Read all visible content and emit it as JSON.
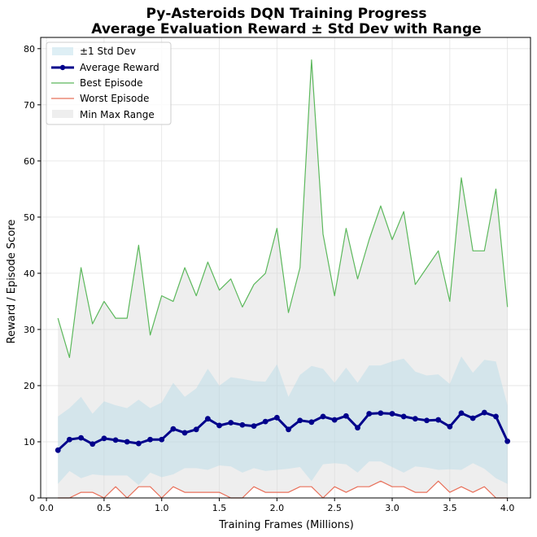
{
  "chart_data": {
    "type": "line",
    "title": "Py-Asteroids DQN Training Progress",
    "subtitle": "Average Evaluation Reward ± Std Dev with Range",
    "xlabel": "Training Frames (Millions)",
    "ylabel": "Reward / Episode Score",
    "xlim": [
      -0.05,
      4.2
    ],
    "ylim": [
      0,
      82
    ],
    "xticks": [
      0.0,
      0.5,
      1.0,
      1.5,
      2.0,
      2.5,
      3.0,
      3.5,
      4.0
    ],
    "xtick_labels": [
      "0.0",
      "0.5",
      "1.0",
      "1.5",
      "2.0",
      "2.5",
      "3.0",
      "3.5",
      "4.0"
    ],
    "yticks": [
      0,
      10,
      20,
      30,
      40,
      50,
      60,
      70,
      80
    ],
    "ytick_labels": [
      "0",
      "10",
      "20",
      "30",
      "40",
      "50",
      "60",
      "70",
      "80"
    ],
    "grid": true,
    "legend_position": "top-left",
    "x": [
      0.1,
      0.2,
      0.3,
      0.4,
      0.5,
      0.6,
      0.7,
      0.8,
      0.9,
      1.0,
      1.1,
      1.2,
      1.3,
      1.4,
      1.5,
      1.6,
      1.7,
      1.8,
      1.9,
      2.0,
      2.1,
      2.2,
      2.3,
      2.4,
      2.5,
      2.6,
      2.7,
      2.8,
      2.9,
      3.0,
      3.1,
      3.2,
      3.3,
      3.4,
      3.5,
      3.6,
      3.7,
      3.8,
      3.9,
      4.0
    ],
    "series": [
      {
        "name": "±1 Std Dev",
        "kind": "band",
        "color": "#add8e6",
        "upper": [
          14.5,
          16.0,
          18.0,
          15.0,
          17.2,
          16.5,
          16.0,
          17.5,
          16.0,
          17.0,
          20.5,
          18.0,
          19.5,
          23.0,
          20.0,
          21.5,
          21.2,
          20.8,
          20.7,
          23.8,
          18.0,
          21.9,
          23.5,
          23.0,
          20.5,
          23.2,
          20.5,
          23.6,
          23.6,
          24.3,
          24.8,
          22.5,
          21.8,
          22.0,
          20.3,
          25.2,
          22.3,
          24.6,
          24.3,
          16.5
        ],
        "lower": [
          2.5,
          4.8,
          3.5,
          4.2,
          4.0,
          4.0,
          4.0,
          2.3,
          4.5,
          3.7,
          4.2,
          5.3,
          5.3,
          5.0,
          5.8,
          5.6,
          4.5,
          5.3,
          4.8,
          5.0,
          5.2,
          5.5,
          3.0,
          6.0,
          6.2,
          6.0,
          4.5,
          6.5,
          6.5,
          5.5,
          4.5,
          5.6,
          5.4,
          5.0,
          5.1,
          5.0,
          6.2,
          5.2,
          3.5,
          2.5
        ]
      },
      {
        "name": "Average Reward",
        "kind": "line",
        "color": "#00008b",
        "values": [
          8.5,
          10.4,
          10.7,
          9.6,
          10.6,
          10.3,
          10.0,
          9.7,
          10.4,
          10.4,
          12.3,
          11.6,
          12.2,
          14.1,
          12.9,
          13.4,
          13.0,
          12.8,
          13.6,
          14.3,
          12.2,
          13.8,
          13.5,
          14.5,
          13.9,
          14.6,
          12.5,
          15.0,
          15.1,
          15.0,
          14.5,
          14.1,
          13.8,
          13.9,
          12.7,
          15.1,
          14.2,
          15.2,
          14.5,
          10.1
        ]
      },
      {
        "name": "Best Episode",
        "kind": "line",
        "color": "#5cb85c",
        "values": [
          32,
          25,
          41,
          31,
          35,
          32,
          32,
          45,
          29,
          36,
          35,
          41,
          36,
          42,
          37,
          39,
          34,
          38,
          40,
          48,
          33,
          41,
          78,
          47,
          36,
          48,
          39,
          46,
          52,
          46,
          51,
          38,
          41,
          44,
          35,
          57,
          44,
          44,
          55,
          34
        ]
      },
      {
        "name": "Worst Episode",
        "kind": "line",
        "color": "#e8705a",
        "values": [
          0,
          0,
          1,
          1,
          0,
          2,
          0,
          2,
          2,
          0,
          2,
          1,
          1,
          1,
          1,
          0,
          0,
          2,
          1,
          1,
          1,
          2,
          2,
          0,
          2,
          1,
          2,
          2,
          3,
          2,
          2,
          1,
          1,
          3,
          1,
          2,
          1,
          2,
          0,
          0
        ]
      },
      {
        "name": "Min Max Range",
        "kind": "range",
        "color": "#d9d9d9"
      }
    ]
  }
}
